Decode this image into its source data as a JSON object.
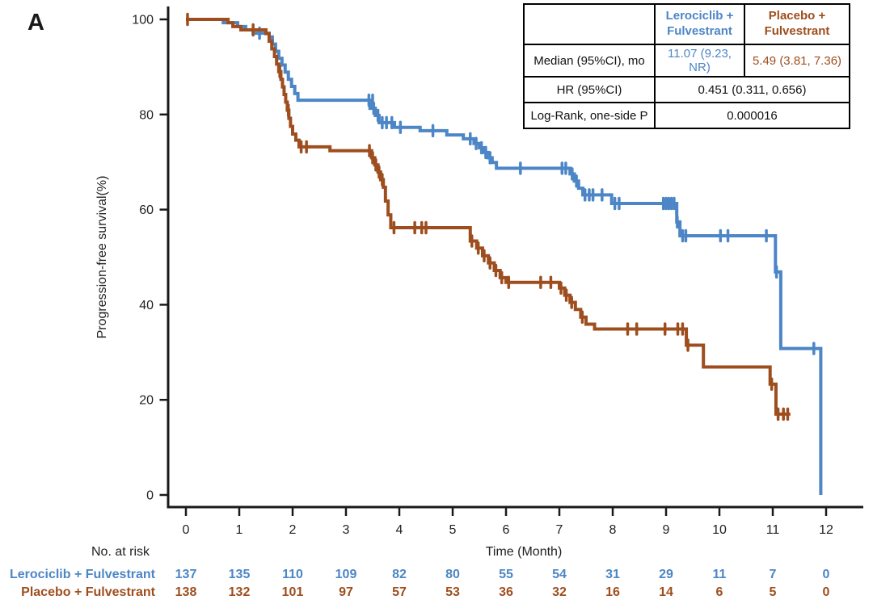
{
  "panel_label": "A",
  "colors": {
    "lerociclib": "#4c86c6",
    "placebo": "#9e4e1e",
    "axis": "#1a1a1a"
  },
  "chart_data": {
    "type": "line",
    "subtype": "kaplan-meier-step",
    "title": "",
    "xlabel": "Time (Month)",
    "ylabel": "Progression-free survival(%)",
    "xlim": [
      0,
      12.7
    ],
    "ylim": [
      0,
      100
    ],
    "x_ticks": [
      0,
      1,
      2,
      3,
      4,
      5,
      6,
      7,
      8,
      9,
      10,
      11,
      12
    ],
    "y_ticks": [
      0,
      20,
      40,
      60,
      80,
      100
    ],
    "grid": false,
    "legend_position": "none",
    "series": [
      {
        "name": "Lerociclib + Fulvestrant",
        "color": "#4c86c6",
        "steps": [
          [
            0,
            100
          ],
          [
            0.7,
            99.3
          ],
          [
            0.97,
            98.5
          ],
          [
            1.12,
            97.8
          ],
          [
            1.26,
            97.1
          ],
          [
            1.56,
            96.3
          ],
          [
            1.62,
            94.8
          ],
          [
            1.68,
            93.3
          ],
          [
            1.74,
            91.8
          ],
          [
            1.8,
            90.4
          ],
          [
            1.86,
            88.9
          ],
          [
            1.92,
            87.4
          ],
          [
            1.98,
            85.9
          ],
          [
            2.04,
            84.4
          ],
          [
            2.1,
            83.0
          ],
          [
            3.45,
            81.3
          ],
          [
            3.55,
            79.8
          ],
          [
            3.62,
            78.3
          ],
          [
            3.91,
            77.3
          ],
          [
            4.39,
            76.6
          ],
          [
            4.89,
            75.7
          ],
          [
            5.2,
            74.9
          ],
          [
            5.4,
            73.9
          ],
          [
            5.5,
            73.0
          ],
          [
            5.58,
            72.0
          ],
          [
            5.66,
            70.9
          ],
          [
            5.74,
            69.9
          ],
          [
            5.82,
            68.7
          ],
          [
            7.2,
            67.5
          ],
          [
            7.28,
            66.0
          ],
          [
            7.36,
            64.5
          ],
          [
            7.44,
            63.1
          ],
          [
            7.98,
            61.3
          ],
          [
            9.2,
            57.4
          ],
          [
            9.26,
            54.5
          ],
          [
            11.05,
            46.9
          ],
          [
            11.15,
            30.8
          ],
          [
            11.9,
            0
          ]
        ],
        "censors": [
          [
            1.38,
            97.1
          ],
          [
            3.43,
            83.0
          ],
          [
            3.5,
            83.0
          ],
          [
            3.52,
            81.3
          ],
          [
            3.6,
            79.8
          ],
          [
            3.68,
            78.3
          ],
          [
            3.76,
            78.3
          ],
          [
            3.86,
            78.3
          ],
          [
            4.02,
            77.3
          ],
          [
            4.63,
            76.6
          ],
          [
            5.33,
            74.9
          ],
          [
            5.44,
            73.9
          ],
          [
            5.54,
            73.0
          ],
          [
            5.62,
            72.0
          ],
          [
            5.7,
            70.9
          ],
          [
            6.27,
            68.7
          ],
          [
            7.05,
            68.7
          ],
          [
            7.12,
            68.7
          ],
          [
            7.24,
            67.5
          ],
          [
            7.32,
            66.0
          ],
          [
            7.48,
            63.1
          ],
          [
            7.56,
            63.1
          ],
          [
            7.63,
            63.1
          ],
          [
            7.8,
            63.1
          ],
          [
            8.04,
            61.3
          ],
          [
            8.12,
            61.3
          ],
          [
            8.95,
            61.3
          ],
          [
            9.0,
            61.3
          ],
          [
            9.05,
            61.3
          ],
          [
            9.1,
            61.3
          ],
          [
            9.15,
            61.3
          ],
          [
            9.21,
            57.4
          ],
          [
            9.31,
            54.5
          ],
          [
            9.37,
            54.5
          ],
          [
            10.02,
            54.5
          ],
          [
            10.16,
            54.5
          ],
          [
            10.88,
            54.5
          ],
          [
            11.07,
            46.9
          ],
          [
            11.77,
            30.8
          ]
        ]
      },
      {
        "name": "Placebo + Fulvestrant",
        "color": "#9e4e1e",
        "steps": [
          [
            0,
            100
          ],
          [
            0.79,
            99.3
          ],
          [
            0.88,
            98.5
          ],
          [
            1.03,
            97.8
          ],
          [
            1.5,
            97.0
          ],
          [
            1.56,
            95.4
          ],
          [
            1.61,
            93.8
          ],
          [
            1.66,
            92.2
          ],
          [
            1.7,
            90.6
          ],
          [
            1.74,
            89.0
          ],
          [
            1.78,
            87.4
          ],
          [
            1.81,
            85.8
          ],
          [
            1.84,
            84.2
          ],
          [
            1.87,
            82.6
          ],
          [
            1.9,
            80.9
          ],
          [
            1.93,
            79.2
          ],
          [
            1.96,
            77.5
          ],
          [
            2.0,
            75.9
          ],
          [
            2.06,
            74.6
          ],
          [
            2.12,
            73.2
          ],
          [
            2.7,
            72.4
          ],
          [
            3.48,
            70.9
          ],
          [
            3.54,
            69.4
          ],
          [
            3.6,
            67.9
          ],
          [
            3.65,
            66.3
          ],
          [
            3.7,
            64.7
          ],
          [
            3.74,
            61.8
          ],
          [
            3.79,
            58.9
          ],
          [
            3.84,
            56.2
          ],
          [
            5.33,
            53.4
          ],
          [
            5.45,
            51.9
          ],
          [
            5.56,
            50.3
          ],
          [
            5.67,
            48.8
          ],
          [
            5.78,
            47.2
          ],
          [
            5.89,
            45.7
          ],
          [
            6.0,
            44.7
          ],
          [
            7.0,
            43.5
          ],
          [
            7.1,
            42.0
          ],
          [
            7.2,
            40.5
          ],
          [
            7.3,
            39.0
          ],
          [
            7.4,
            37.4
          ],
          [
            7.5,
            35.9
          ],
          [
            7.66,
            34.9
          ],
          [
            9.38,
            31.5
          ],
          [
            9.7,
            26.9
          ],
          [
            10.95,
            23.3
          ],
          [
            11.06,
            17.0
          ],
          [
            11.33,
            17.0
          ]
        ],
        "censors": [
          [
            0.03,
            100
          ],
          [
            1.26,
            97.8
          ],
          [
            1.76,
            89.0
          ],
          [
            1.92,
            80.9
          ],
          [
            2.16,
            73.2
          ],
          [
            2.26,
            73.2
          ],
          [
            3.44,
            72.4
          ],
          [
            3.5,
            70.9
          ],
          [
            3.56,
            69.4
          ],
          [
            3.62,
            67.9
          ],
          [
            3.68,
            66.3
          ],
          [
            3.9,
            56.2
          ],
          [
            4.29,
            56.2
          ],
          [
            4.42,
            56.2
          ],
          [
            4.5,
            56.2
          ],
          [
            5.36,
            53.4
          ],
          [
            5.48,
            51.9
          ],
          [
            5.59,
            50.3
          ],
          [
            5.7,
            48.8
          ],
          [
            5.81,
            47.2
          ],
          [
            5.92,
            45.7
          ],
          [
            6.05,
            44.7
          ],
          [
            6.65,
            44.7
          ],
          [
            6.84,
            44.7
          ],
          [
            7.03,
            43.5
          ],
          [
            7.13,
            42.0
          ],
          [
            7.23,
            40.5
          ],
          [
            7.43,
            37.4
          ],
          [
            8.28,
            34.9
          ],
          [
            8.45,
            34.9
          ],
          [
            8.98,
            34.9
          ],
          [
            9.22,
            34.9
          ],
          [
            9.31,
            34.9
          ],
          [
            9.41,
            31.5
          ],
          [
            10.98,
            23.3
          ],
          [
            11.1,
            17.0
          ],
          [
            11.2,
            17.0
          ],
          [
            11.28,
            17.0
          ]
        ]
      }
    ]
  },
  "stats_table": {
    "col_headers": [
      "",
      "Lerociclib +\nFulvestrant",
      "Placebo +\nFulvestrant"
    ],
    "rows": [
      {
        "label": "Median (95%CI), mo",
        "values": [
          "11.07 (9.23, NR)",
          "5.49 (3.81, 7.36)"
        ]
      },
      {
        "label": "HR (95%CI)",
        "values": [
          "0.451 (0.311, 0.656)"
        ]
      },
      {
        "label": "Log-Rank, one-side P",
        "values": [
          "0.000016"
        ]
      }
    ]
  },
  "risk_table": {
    "title": "No. at risk",
    "rows": [
      {
        "name": "Lerociclib + Fulvestrant",
        "color": "#4c86c6",
        "values": [
          "137",
          "135",
          "110",
          "109",
          "82",
          "80",
          "55",
          "54",
          "31",
          "29",
          "11",
          "7",
          "0"
        ]
      },
      {
        "name": "Placebo + Fulvestrant",
        "color": "#9e4e1e",
        "values": [
          "138",
          "132",
          "101",
          "97",
          "57",
          "53",
          "36",
          "32",
          "16",
          "14",
          "6",
          "5",
          "0"
        ]
      }
    ]
  }
}
